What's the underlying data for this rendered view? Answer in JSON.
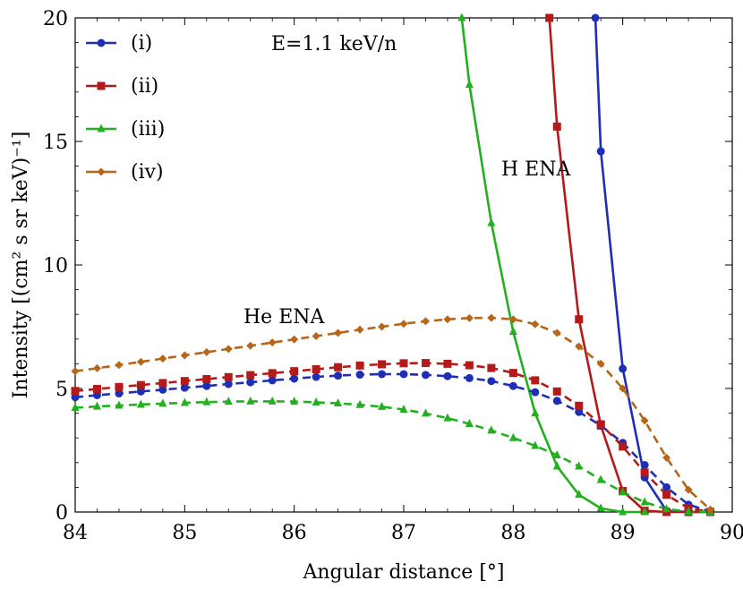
{
  "chart_data": {
    "type": "line",
    "title": "",
    "xlabel": "Angular distance [°]",
    "ylabel": "Intensity [(cm² s sr keV)⁻¹]",
    "xlim": [
      84,
      90
    ],
    "ylim": [
      0,
      20
    ],
    "xticks": [
      "84",
      "85",
      "86",
      "87",
      "88",
      "89",
      "90"
    ],
    "yticks": [
      "0",
      "5",
      "10",
      "15",
      "20"
    ],
    "legend_position": "top-left",
    "annotations": {
      "energy": "E=1.1 keV/n",
      "h_ena": "H ENA",
      "he_ena": "He ENA"
    },
    "legend": [
      {
        "label": "(i)",
        "color": "#1f2fb5",
        "marker": "circle"
      },
      {
        "label": "(ii)",
        "color": "#b51a1a",
        "marker": "square"
      },
      {
        "label": "(iii)",
        "color": "#22b01e",
        "marker": "triangle"
      },
      {
        "label": "(iv)",
        "color": "#b8651a",
        "marker": "diamond"
      }
    ],
    "series": [
      {
        "name": "(i)",
        "group": "H ENA",
        "style": "solid",
        "color": "#1f2fb5",
        "marker": "circle",
        "x": [
          88.75,
          88.8,
          89.0,
          89.2,
          89.4,
          89.6,
          89.8
        ],
        "y": [
          20,
          14.6,
          5.8,
          1.4,
          0.05,
          0,
          0
        ]
      },
      {
        "name": "(ii)",
        "group": "H ENA",
        "style": "solid",
        "color": "#b51a1a",
        "marker": "square",
        "x": [
          88.33,
          88.4,
          88.6,
          88.8,
          89.0,
          89.2,
          89.4,
          89.6,
          89.8
        ],
        "y": [
          20,
          15.6,
          7.8,
          3.5,
          0.85,
          0.05,
          0,
          0,
          0
        ]
      },
      {
        "name": "(iii)",
        "group": "H ENA",
        "style": "solid",
        "color": "#22b01e",
        "marker": "triangle",
        "x": [
          87.53,
          87.6,
          87.8,
          88.0,
          88.2,
          88.4,
          88.6,
          88.8,
          89.0,
          89.2
        ],
        "y": [
          20,
          17.3,
          11.7,
          7.3,
          4.0,
          1.85,
          0.7,
          0.15,
          0,
          0
        ]
      },
      {
        "name": "(i)",
        "group": "He ENA",
        "style": "dashed",
        "color": "#1f2fb5",
        "marker": "circle",
        "x": [
          84.0,
          84.2,
          84.4,
          84.6,
          84.8,
          85.0,
          85.2,
          85.4,
          85.6,
          85.8,
          86.0,
          86.2,
          86.4,
          86.6,
          86.8,
          87.0,
          87.2,
          87.4,
          87.6,
          87.8,
          88.0,
          88.2,
          88.4,
          88.6,
          88.8,
          89.0,
          89.2,
          89.4,
          89.6,
          89.8
        ],
        "y": [
          4.65,
          4.73,
          4.8,
          4.88,
          4.95,
          5.03,
          5.1,
          5.18,
          5.25,
          5.33,
          5.4,
          5.47,
          5.52,
          5.56,
          5.58,
          5.58,
          5.55,
          5.5,
          5.42,
          5.3,
          5.1,
          4.85,
          4.5,
          4.05,
          3.5,
          2.8,
          1.9,
          1.0,
          0.3,
          0.02
        ]
      },
      {
        "name": "(ii)",
        "group": "He ENA",
        "style": "dashed",
        "color": "#b51a1a",
        "marker": "square",
        "x": [
          84.0,
          84.2,
          84.4,
          84.6,
          84.8,
          85.0,
          85.2,
          85.4,
          85.6,
          85.8,
          86.0,
          86.2,
          86.4,
          86.6,
          86.8,
          87.0,
          87.2,
          87.4,
          87.6,
          87.8,
          88.0,
          88.2,
          88.4,
          88.6,
          88.8,
          89.0,
          89.2,
          89.4,
          89.6,
          89.8
        ],
        "y": [
          4.9,
          4.98,
          5.06,
          5.14,
          5.22,
          5.3,
          5.38,
          5.46,
          5.54,
          5.62,
          5.7,
          5.78,
          5.86,
          5.93,
          5.98,
          6.02,
          6.03,
          6.0,
          5.94,
          5.83,
          5.63,
          5.33,
          4.88,
          4.3,
          3.55,
          2.65,
          1.6,
          0.7,
          0.15,
          0.01
        ]
      },
      {
        "name": "(iii)",
        "group": "He ENA",
        "style": "dashed",
        "color": "#22b01e",
        "marker": "triangle",
        "x": [
          84.0,
          84.2,
          84.4,
          84.6,
          84.8,
          85.0,
          85.2,
          85.4,
          85.6,
          85.8,
          86.0,
          86.2,
          86.4,
          86.6,
          86.8,
          87.0,
          87.2,
          87.4,
          87.6,
          87.8,
          88.0,
          88.2,
          88.4,
          88.6,
          88.8,
          89.0,
          89.2,
          89.4,
          89.6,
          89.8
        ],
        "y": [
          4.22,
          4.27,
          4.31,
          4.35,
          4.39,
          4.42,
          4.45,
          4.47,
          4.48,
          4.48,
          4.47,
          4.44,
          4.4,
          4.34,
          4.26,
          4.15,
          3.99,
          3.8,
          3.57,
          3.3,
          3.0,
          2.68,
          2.3,
          1.85,
          1.3,
          0.8,
          0.4,
          0.12,
          0.02,
          0
        ]
      },
      {
        "name": "(iv)",
        "group": "He ENA",
        "style": "dashed",
        "color": "#b8651a",
        "marker": "diamond",
        "x": [
          84.0,
          84.2,
          84.4,
          84.6,
          84.8,
          85.0,
          85.2,
          85.4,
          85.6,
          85.8,
          86.0,
          86.2,
          86.4,
          86.6,
          86.8,
          87.0,
          87.2,
          87.4,
          87.6,
          87.8,
          88.0,
          88.2,
          88.4,
          88.6,
          88.8,
          89.0,
          89.2,
          89.4,
          89.6,
          89.8
        ],
        "y": [
          5.7,
          5.82,
          5.95,
          6.08,
          6.21,
          6.34,
          6.47,
          6.6,
          6.73,
          6.86,
          6.99,
          7.12,
          7.25,
          7.38,
          7.5,
          7.62,
          7.72,
          7.8,
          7.85,
          7.86,
          7.8,
          7.6,
          7.25,
          6.7,
          6.0,
          5.0,
          3.7,
          2.2,
          0.9,
          0.1
        ]
      }
    ]
  }
}
